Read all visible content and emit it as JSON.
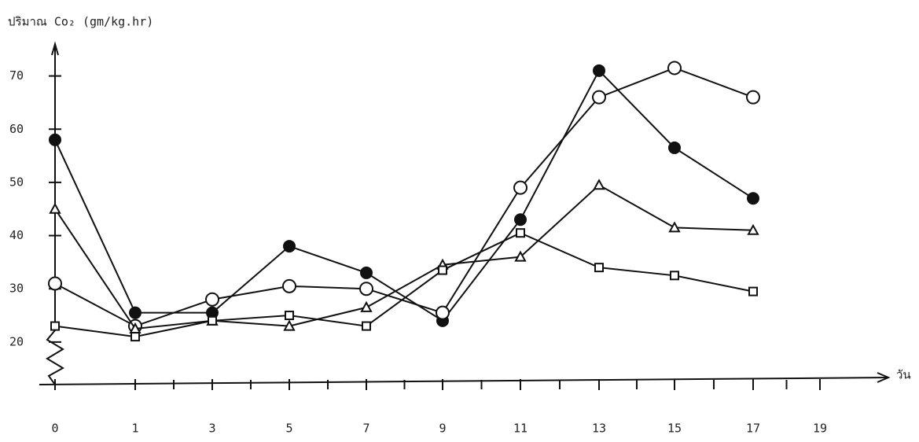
{
  "chart_data": {
    "type": "line",
    "y_label": "ปริมาณ Co₂ (gm/kg.hr)",
    "x_label": "วัน",
    "categories": [
      "0",
      "1",
      "3",
      "5",
      "7",
      "9",
      "11",
      "13",
      "15",
      "17",
      "19"
    ],
    "ylim": [
      12,
      76
    ],
    "yticks": [
      20,
      30,
      40,
      50,
      60,
      70
    ],
    "series": [
      {
        "marker": "filled-circle",
        "color": "#111111",
        "values": [
          58,
          25.5,
          25.5,
          38,
          33,
          24,
          43,
          71,
          56.5,
          47,
          null
        ]
      },
      {
        "marker": "open-circle",
        "color": "#111111",
        "values": [
          31,
          23,
          28,
          30.5,
          30,
          25.5,
          49,
          66,
          71.5,
          66,
          null
        ]
      },
      {
        "marker": "triangle",
        "color": "#111111",
        "values": [
          45,
          22.5,
          24,
          23,
          26.5,
          34.5,
          36,
          49.5,
          41.5,
          41,
          null
        ]
      },
      {
        "marker": "square",
        "color": "#111111",
        "values": [
          23,
          21,
          24,
          25,
          23,
          33.5,
          40.5,
          34,
          32.5,
          29.5,
          null
        ]
      }
    ]
  }
}
